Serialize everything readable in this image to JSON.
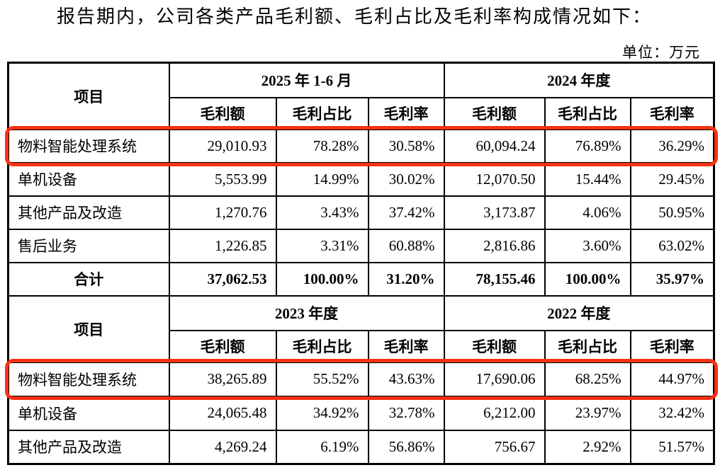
{
  "page": {
    "intro": "报告期内，公司各类产品毛利额、毛利占比及毛利率构成情况如下：",
    "unit_label": "单位：万元"
  },
  "highlight": {
    "color": "#f63114"
  },
  "table": {
    "sections": [
      {
        "item_label": "项目",
        "periods": [
          "2025 年 1-6 月",
          "2024 年度"
        ],
        "sub_headers": [
          "毛利额",
          "毛利占比",
          "毛利率",
          "毛利额",
          "毛利占比",
          "毛利率"
        ],
        "rows": [
          {
            "label": "物料智能处理系统",
            "highlighted": true,
            "is_total": false,
            "values": [
              "29,010.93",
              "78.28%",
              "30.58%",
              "60,094.24",
              "76.89%",
              "36.29%"
            ]
          },
          {
            "label": "单机设备",
            "highlighted": false,
            "is_total": false,
            "values": [
              "5,553.99",
              "14.99%",
              "30.02%",
              "12,070.50",
              "15.44%",
              "29.45%"
            ]
          },
          {
            "label": "其他产品及改造",
            "highlighted": false,
            "is_total": false,
            "values": [
              "1,270.76",
              "3.43%",
              "37.42%",
              "3,173.87",
              "4.06%",
              "50.95%"
            ]
          },
          {
            "label": "售后业务",
            "highlighted": false,
            "is_total": false,
            "values": [
              "1,226.85",
              "3.31%",
              "60.88%",
              "2,816.86",
              "3.60%",
              "63.02%"
            ]
          },
          {
            "label": "合计",
            "highlighted": false,
            "is_total": true,
            "values": [
              "37,062.53",
              "100.00%",
              "31.20%",
              "78,155.46",
              "100.00%",
              "35.97%"
            ]
          }
        ]
      },
      {
        "item_label": "项目",
        "periods": [
          "2023 年度",
          "2022 年度"
        ],
        "sub_headers": [
          "毛利额",
          "毛利占比",
          "毛利率",
          "毛利额",
          "毛利占比",
          "毛利率"
        ],
        "rows": [
          {
            "label": "物料智能处理系统",
            "highlighted": true,
            "is_total": false,
            "values": [
              "38,265.89",
              "55.52%",
              "43.63%",
              "17,690.06",
              "68.25%",
              "44.97%"
            ]
          },
          {
            "label": "单机设备",
            "highlighted": false,
            "is_total": false,
            "values": [
              "24,065.48",
              "34.92%",
              "32.78%",
              "6,212.00",
              "23.97%",
              "32.42%"
            ]
          },
          {
            "label": "其他产品及改造",
            "highlighted": false,
            "is_total": false,
            "values": [
              "4,269.24",
              "6.19%",
              "56.86%",
              "756.67",
              "2.92%",
              "51.57%"
            ]
          }
        ]
      }
    ]
  }
}
